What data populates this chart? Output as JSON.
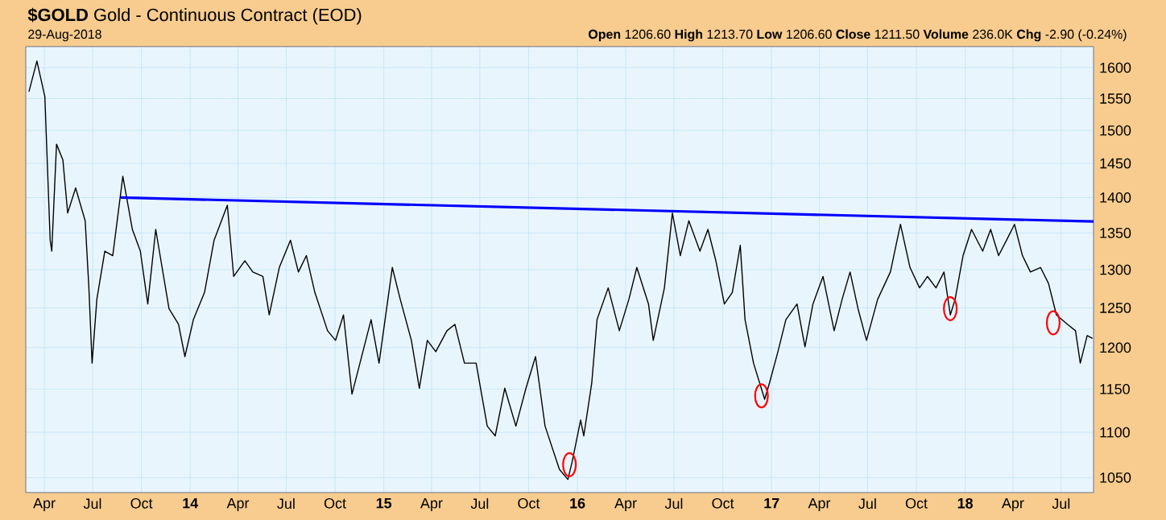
{
  "chart_data": {
    "type": "line",
    "title": "**$GOLD** Gold - Continuous Contract (EOD)",
    "subtitle": "29-Aug-2018",
    "annotations": [
      "**Open** 1206.60 **High** 1213.70 **Low** 1206.60 **Close** 1211.50 **Volume** 236.0K **Chg** -2.90 (-0.24%)"
    ],
    "log": "y",
    "grid": true,
    "xlim": [
      "2013-02-25",
      "2018-08-31"
    ],
    "ylim": [
      1034,
      1635
    ],
    "xticks": [
      {
        "value": "2013-04-01",
        "label": "Apr"
      },
      {
        "value": "2013-07-01",
        "label": "Jul"
      },
      {
        "value": "2013-10-01",
        "label": "Oct"
      },
      {
        "value": "2014-01-01",
        "label": "**14**"
      },
      {
        "value": "2014-04-01",
        "label": "Apr"
      },
      {
        "value": "2014-07-01",
        "label": "Jul"
      },
      {
        "value": "2014-10-01",
        "label": "Oct"
      },
      {
        "value": "2015-01-01",
        "label": "**15**"
      },
      {
        "value": "2015-04-01",
        "label": "Apr"
      },
      {
        "value": "2015-07-01",
        "label": "Jul"
      },
      {
        "value": "2015-10-01",
        "label": "Oct"
      },
      {
        "value": "2016-01-01",
        "label": "**16**"
      },
      {
        "value": "2016-04-01",
        "label": "Apr"
      },
      {
        "value": "2016-07-01",
        "label": "Jul"
      },
      {
        "value": "2016-10-01",
        "label": "Oct"
      },
      {
        "value": "2017-01-01",
        "label": "**17**"
      },
      {
        "value": "2017-04-01",
        "label": "Apr"
      },
      {
        "value": "2017-07-01",
        "label": "Jul"
      },
      {
        "value": "2017-10-01",
        "label": "Oct"
      },
      {
        "value": "2018-01-01",
        "label": "**18**"
      },
      {
        "value": "2018-04-01",
        "label": "Apr"
      },
      {
        "value": "2018-07-01",
        "label": "Jul"
      }
    ],
    "yticks": [
      1050,
      1100,
      1150,
      1200,
      1250,
      1300,
      1350,
      1400,
      1450,
      1500,
      1550,
      1600
    ],
    "series": [
      {
        "color": "#000000",
        "marker": "none",
        "x": [
          "2013-03-03",
          "2013-03-18",
          "2013-04-02",
          "2013-04-12",
          "2013-04-15",
          "2013-04-24",
          "2013-05-06",
          "2013-05-15",
          "2013-05-30",
          "2013-06-17",
          "2013-06-24",
          "2013-06-30",
          "2013-07-09",
          "2013-07-24",
          "2013-08-08",
          "2013-08-27",
          "2013-09-14",
          "2013-09-29",
          "2013-10-13",
          "2013-10-28",
          "2013-11-22",
          "2013-12-10",
          "2013-12-22",
          "2014-01-07",
          "2014-01-28",
          "2014-02-15",
          "2014-03-12",
          "2014-03-24",
          "2014-04-14",
          "2014-04-29",
          "2014-05-18",
          "2014-05-30",
          "2014-06-18",
          "2014-07-09",
          "2014-07-24",
          "2014-08-08",
          "2014-08-24",
          "2014-09-17",
          "2014-10-02",
          "2014-10-17",
          "2014-11-02",
          "2014-11-17",
          "2014-12-08",
          "2014-12-23",
          "2015-01-17",
          "2015-02-01",
          "2015-02-22",
          "2015-03-09",
          "2015-03-24",
          "2015-04-09",
          "2015-04-30",
          "2015-05-15",
          "2015-06-02",
          "2015-06-24",
          "2015-07-15",
          "2015-07-30",
          "2015-08-17",
          "2015-09-07",
          "2015-09-26",
          "2015-10-14",
          "2015-11-01",
          "2015-11-28",
          "2015-12-14",
          "2015-12-22",
          "2016-01-07",
          "2016-01-13",
          "2016-01-28",
          "2016-02-07",
          "2016-02-28",
          "2016-03-20",
          "2016-04-07",
          "2016-04-22",
          "2016-05-14",
          "2016-05-23",
          "2016-06-13",
          "2016-06-28",
          "2016-07-13",
          "2016-07-29",
          "2016-08-19",
          "2016-09-03",
          "2016-09-18",
          "2016-10-04",
          "2016-10-19",
          "2016-11-03",
          "2016-11-12",
          "2016-11-28",
          "2016-12-19",
          "2016-12-28",
          "2017-01-13",
          "2017-01-28",
          "2017-02-18",
          "2017-03-05",
          "2017-03-20",
          "2017-04-08",
          "2017-04-29",
          "2017-05-14",
          "2017-05-29",
          "2017-06-13",
          "2017-06-29",
          "2017-07-20",
          "2017-08-13",
          "2017-09-01",
          "2017-09-19",
          "2017-10-07",
          "2017-10-22",
          "2017-11-07",
          "2017-11-22",
          "2017-12-04",
          "2017-12-13",
          "2017-12-28",
          "2018-01-13",
          "2018-02-03",
          "2018-02-18",
          "2018-03-05",
          "2018-03-20",
          "2018-04-04",
          "2018-04-19",
          "2018-05-04",
          "2018-05-23",
          "2018-06-07",
          "2018-06-22",
          "2018-07-13",
          "2018-07-28",
          "2018-08-06",
          "2018-08-19",
          "2018-08-29"
        ],
        "values": [
          1561,
          1611,
          1553,
          1340,
          1325,
          1479,
          1455,
          1378,
          1414,
          1367,
          1276,
          1181,
          1261,
          1325,
          1319,
          1431,
          1355,
          1325,
          1255,
          1355,
          1249,
          1229,
          1189,
          1235,
          1270,
          1340,
          1389,
          1291,
          1312,
          1297,
          1291,
          1241,
          1303,
          1340,
          1297,
          1319,
          1270,
          1221,
          1209,
          1241,
          1144,
          1181,
          1235,
          1181,
          1303,
          1261,
          1209,
          1151,
          1209,
          1195,
          1221,
          1229,
          1181,
          1181,
          1107,
          1096,
          1151,
          1107,
          1151,
          1189,
          1107,
          1059,
          1048,
          1067,
          1114,
          1096,
          1157,
          1235,
          1276,
          1221,
          1261,
          1303,
          1255,
          1209,
          1276,
          1378,
          1319,
          1367,
          1325,
          1355,
          1312,
          1255,
          1270,
          1333,
          1235,
          1181,
          1138,
          1157,
          1195,
          1235,
          1255,
          1201,
          1255,
          1291,
          1221,
          1261,
          1297,
          1249,
          1209,
          1261,
          1297,
          1362,
          1303,
          1276,
          1291,
          1276,
          1297,
          1241,
          1261,
          1319,
          1355,
          1325,
          1355,
          1319,
          1340,
          1362,
          1319,
          1297,
          1303,
          1282,
          1241,
          1229,
          1221,
          1181,
          1215,
          1211.5
        ]
      },
      {
        "color": "#0000ff",
        "marker": "none",
        "x": [
          "2013-08-23",
          "2018-08-31"
        ],
        "values": [
          1400,
          1366
        ]
      },
      {
        "type": "scatter",
        "color": "#ff0000",
        "marker": "circle",
        "x": [
          "2015-12-17",
          "2016-12-13",
          "2017-12-04",
          "2018-06-16"
        ],
        "values": [
          1064,
          1142,
          1249,
          1231
        ]
      }
    ]
  }
}
